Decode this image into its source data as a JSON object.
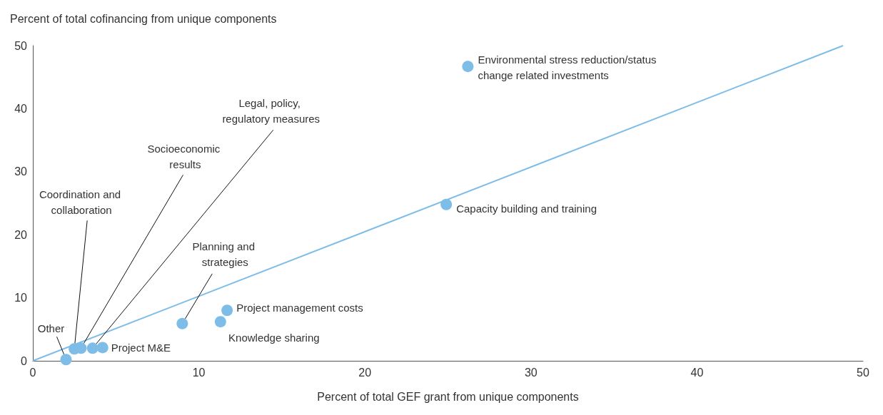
{
  "chart_data": {
    "type": "scatter",
    "xlabel": "Percent of total GEF grant from unique components",
    "ylabel": "Percent of total cofinancing from unique components",
    "x": [
      2.0,
      2.5,
      2.9,
      3.6,
      4.2,
      9.0,
      11.3,
      11.7,
      24.9,
      26.2
    ],
    "series": [
      {
        "color": "#7dbde8",
        "marker": "circle",
        "values": [
          0.2,
          1.9,
          2.0,
          2.0,
          2.1,
          5.9,
          6.2,
          8.0,
          24.8,
          46.7
        ]
      },
      {
        "type": "line",
        "color": "#7dbde8",
        "x": [
          0,
          48.8
        ],
        "values": [
          0,
          50
        ]
      }
    ],
    "xlim": [
      0,
      50
    ],
    "xticks": [
      0,
      10,
      20,
      30,
      40,
      50
    ],
    "ylim": [
      0,
      50
    ],
    "yticks": [
      0,
      10,
      20,
      30,
      40,
      50
    ],
    "grid": false,
    "line_style": "solid",
    "annotations": [
      {
        "text": "Other",
        "x": 2.0,
        "y": 0.2
      },
      {
        "text": "Coordination and collaboration",
        "x": 2.5,
        "y": 1.9
      },
      {
        "text": "Socioeconomic results",
        "x": 2.9,
        "y": 2.0
      },
      {
        "text": "Legal, policy, regulatory measures",
        "x": 3.6,
        "y": 2.0
      },
      {
        "text": "Project M&E",
        "x": 4.2,
        "y": 2.1
      },
      {
        "text": "Planning and strategies",
        "x": 9.0,
        "y": 5.9
      },
      {
        "text": "Knowledge sharing",
        "x": 11.3,
        "y": 6.2
      },
      {
        "text": "Project management costs",
        "x": 11.7,
        "y": 8.0
      },
      {
        "text": "Capacity building and training",
        "x": 24.9,
        "y": 24.8
      },
      {
        "text": "Environmental stress reduction/status change related investments",
        "x": 26.2,
        "y": 46.7
      }
    ]
  }
}
